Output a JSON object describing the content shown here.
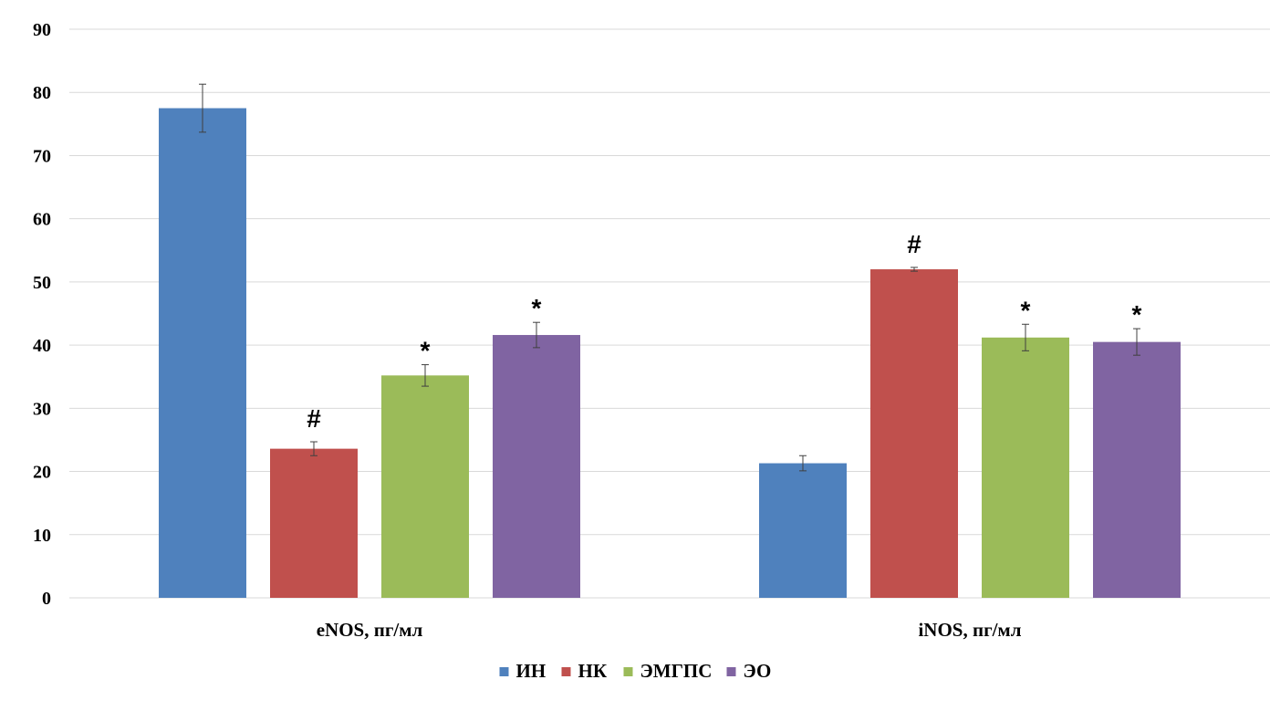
{
  "chart_data": {
    "type": "bar",
    "categories": [
      "eNOS, пг/мл",
      "iNOS, пг/мл"
    ],
    "series": [
      {
        "name": "ИН",
        "color": "#4f81bd",
        "values": [
          77.5,
          21.3
        ],
        "errors": [
          3.8,
          1.2
        ],
        "markers": [
          "",
          ""
        ]
      },
      {
        "name": "НК",
        "color": "#c0504d",
        "values": [
          23.6,
          52.0
        ],
        "errors": [
          1.1,
          0.3
        ],
        "markers": [
          "#",
          "#"
        ]
      },
      {
        "name": "ЭМГПС",
        "color": "#9bbb59",
        "values": [
          35.2,
          41.2
        ],
        "errors": [
          1.7,
          2.1
        ],
        "markers": [
          "*",
          "*"
        ]
      },
      {
        "name": "ЭО",
        "color": "#8064a2",
        "values": [
          41.6,
          40.5
        ],
        "errors": [
          2.0,
          2.1
        ],
        "markers": [
          "*",
          "*"
        ]
      }
    ],
    "ylim": [
      0,
      90
    ],
    "yticks": [
      0,
      10,
      20,
      30,
      40,
      50,
      60,
      70,
      80,
      90
    ],
    "grid": true,
    "legend_position": "bottom",
    "xlabel": "",
    "ylabel": ""
  }
}
